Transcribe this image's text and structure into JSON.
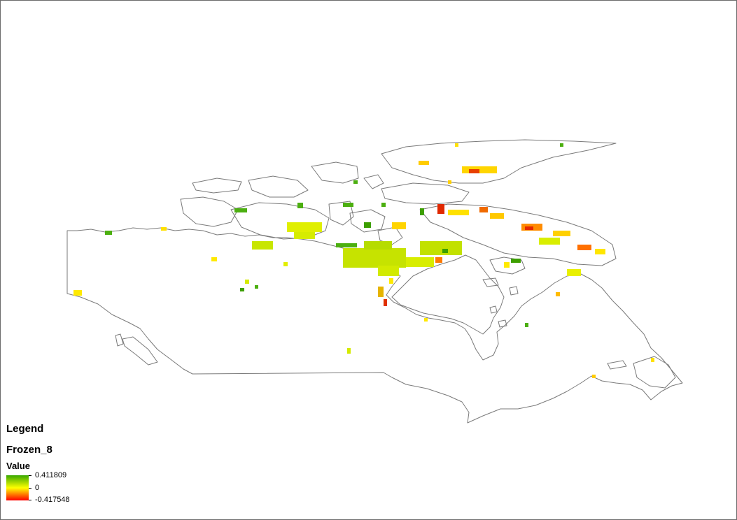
{
  "legend": {
    "title": "Legend",
    "layer_name": "Frozen_8",
    "field_label": "Value",
    "max_label": "0.411809",
    "mid_label": "0",
    "min_label": "-0.417548",
    "ramp_colors": [
      "#38a800",
      "#ffff00",
      "#ff0000"
    ]
  },
  "map": {
    "outline_color": "#7a7a7a",
    "background_color": "#ffffff"
  }
}
